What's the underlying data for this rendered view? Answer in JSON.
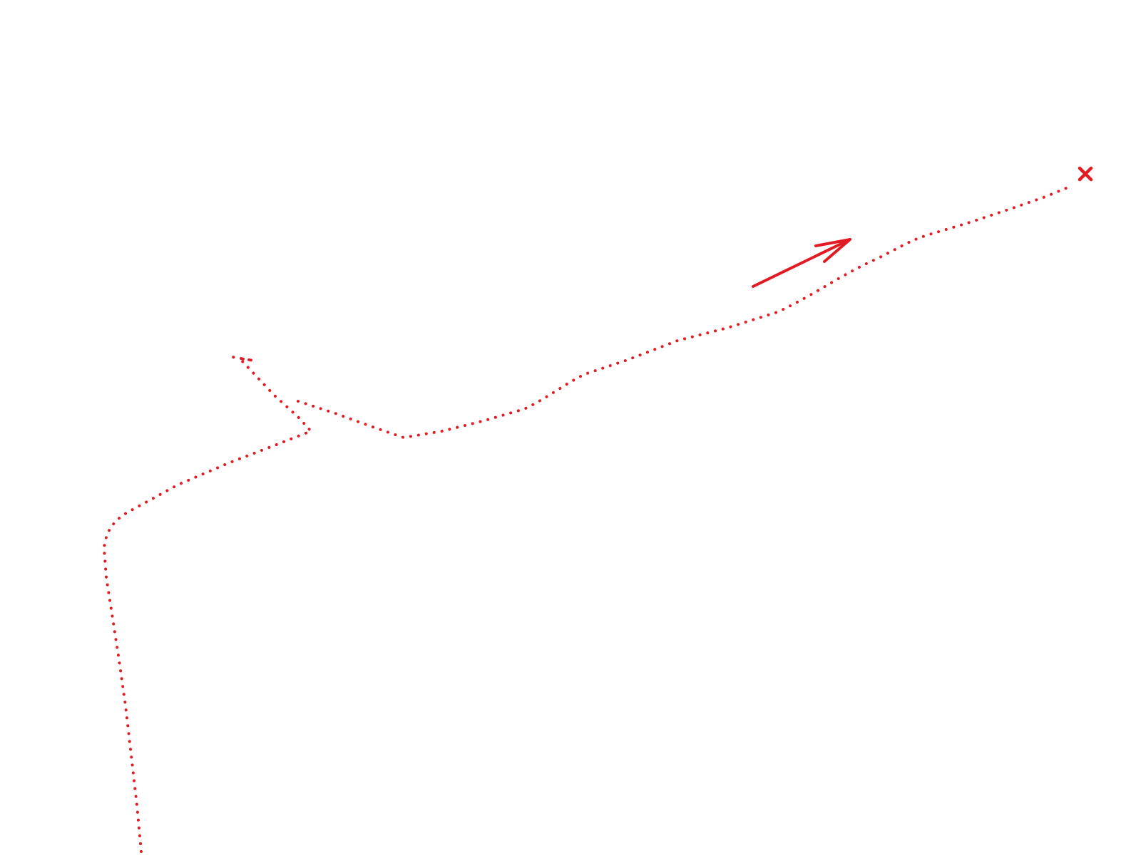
{
  "map": {
    "background_color": "#ffffff",
    "route_color": "#e01b22",
    "route_style": "dotted",
    "direction_arrow_icon": "arrow-icon",
    "end_marker_icon": "x-cross-icon"
  }
}
